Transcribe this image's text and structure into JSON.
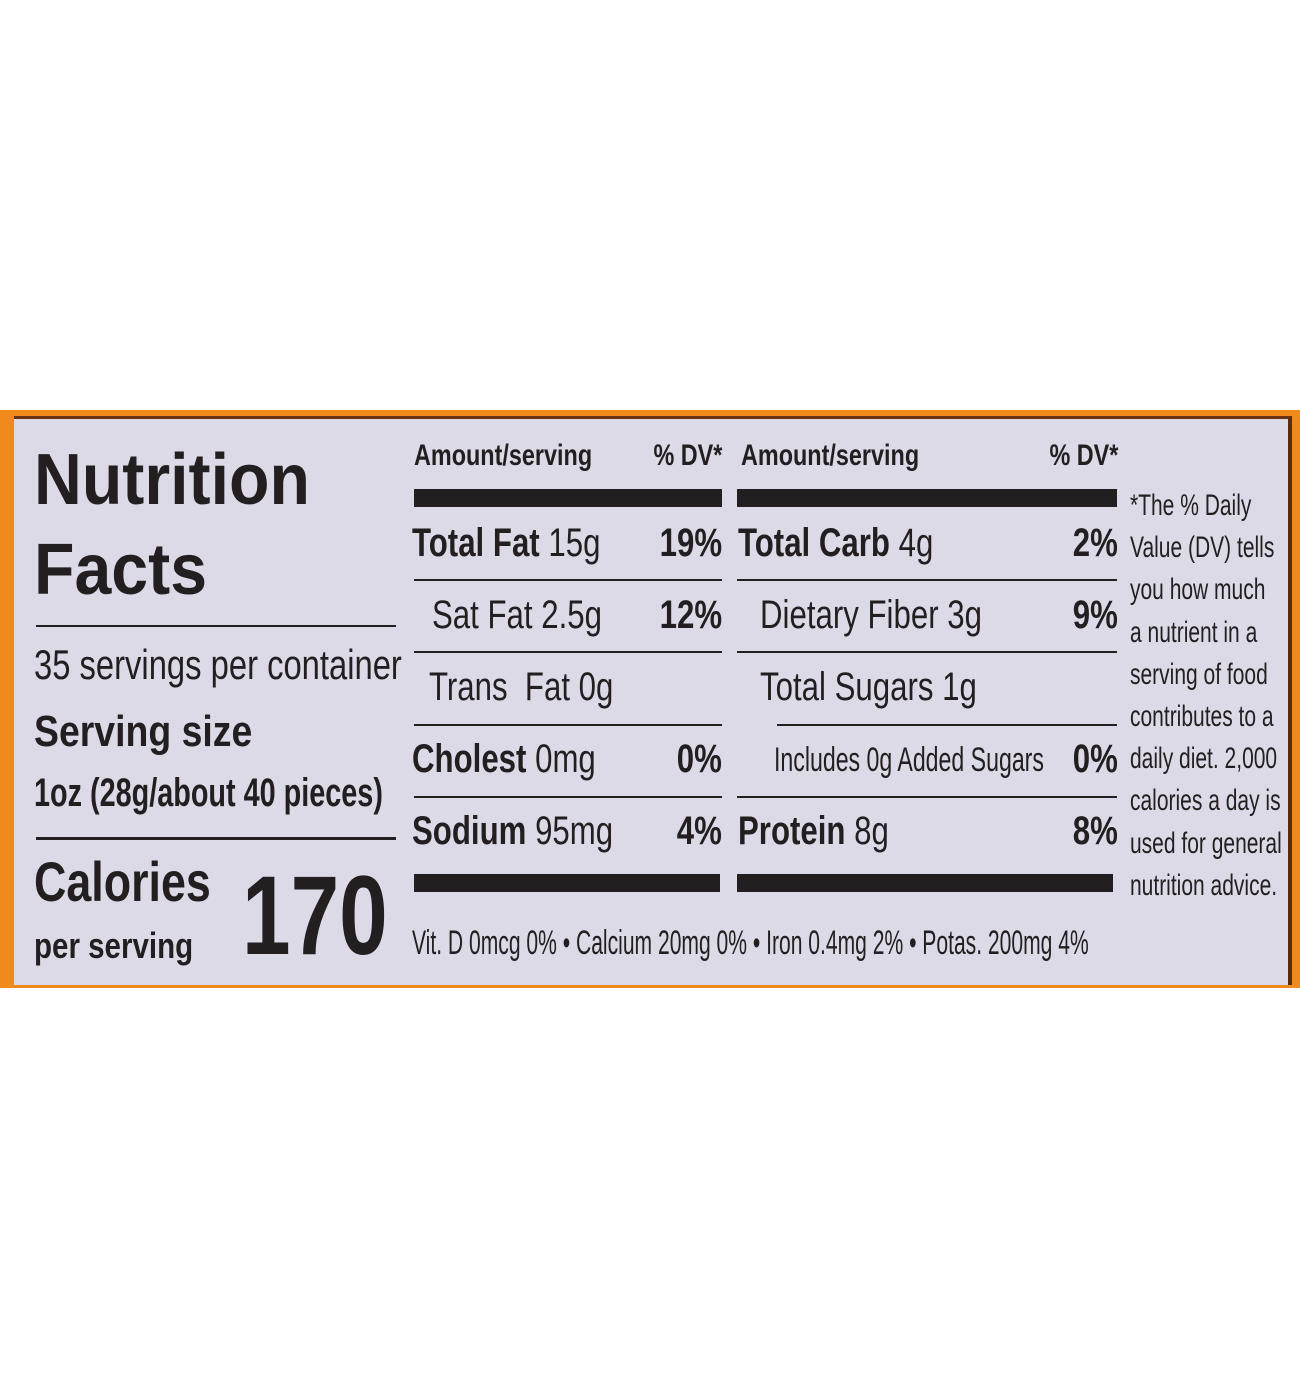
{
  "title_line1": "Nutrition",
  "title_line2": "Facts",
  "servings_per_container": "35 servings per container",
  "serving_size_label": "Serving size",
  "serving_size_value": "1oz (28g/about 40 pieces)",
  "calories_label": "Calories",
  "calories_sub": "per serving",
  "calories_value": "170",
  "header": {
    "amount_left": "Amount/serving",
    "dv_left": "% DV*",
    "amount_right": "Amount/serving",
    "dv_right": "% DV*"
  },
  "left_nutrients": [
    {
      "name": "Total Fat",
      "amount": "15g",
      "dv": "19%"
    },
    {
      "name": "Sat Fat",
      "amount": "2.5g",
      "dv": "12%"
    },
    {
      "name": "Trans  Fat",
      "amount": "0g",
      "dv": ""
    },
    {
      "name": "Cholest",
      "amount": "0mg",
      "dv": "0%"
    },
    {
      "name": "Sodium",
      "amount": "95mg",
      "dv": "4%"
    }
  ],
  "right_nutrients": [
    {
      "name": "Total Carb",
      "amount": "4g",
      "dv": "2%"
    },
    {
      "name": "Dietary Fiber",
      "amount": "3g",
      "dv": "9%"
    },
    {
      "name": "Total Sugars",
      "amount": "1g",
      "dv": ""
    },
    {
      "name": "Includes 0g Added Sugars",
      "amount": "",
      "dv": "0%"
    },
    {
      "name": "Protein",
      "amount": "8g",
      "dv": "8%"
    }
  ],
  "micronutrients": "Vit. D 0mcg 0% • Calcium 20mg 0% • Iron 0.4mg 2% • Potas. 200mg 4%",
  "footnote": [
    "*The % Daily",
    "Value (DV) tells",
    "you how much",
    "a nutrient in a",
    "serving of food",
    "contributes to a",
    "daily diet. 2,000",
    "calories a day is",
    "used for general",
    "nutrition advice."
  ],
  "colors": {
    "border": "#f08a1c",
    "panel": "#dcdae6",
    "ink": "#231f20"
  }
}
